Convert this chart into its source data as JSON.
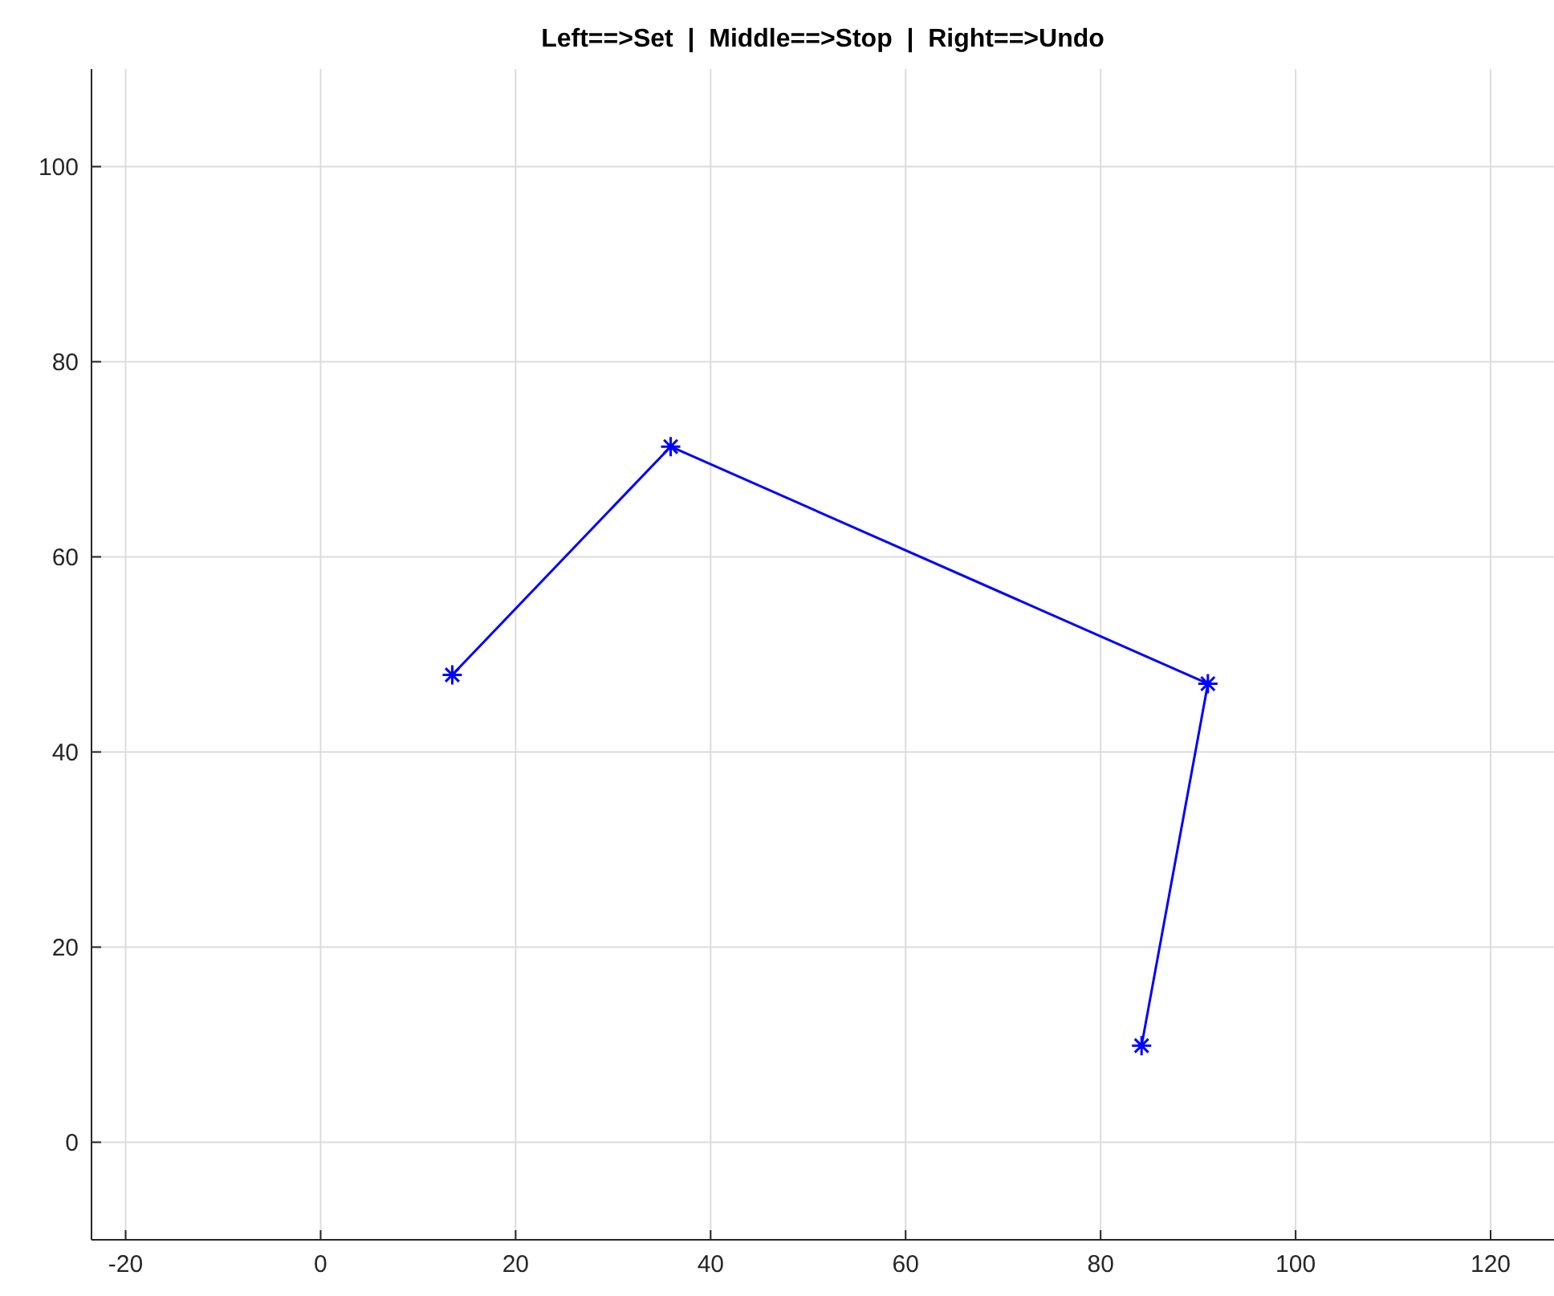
{
  "chart_data": {
    "type": "line",
    "title": "Left==>Set  |  Middle==>Stop  |  Right==>Undo",
    "x": [
      13.5,
      35.9,
      91.0,
      84.2
    ],
    "series": [
      {
        "color": "#0000ff",
        "values": [
          47.9,
          71.3,
          47.0,
          9.9
        ]
      }
    ],
    "xlim": [
      -23.5,
      126.5
    ],
    "ylim": [
      -10,
      110
    ],
    "xticks": [
      -20,
      0,
      20,
      40,
      60,
      80,
      100,
      120
    ],
    "yticks": [
      0,
      20,
      40,
      60,
      80,
      100
    ],
    "grid": true,
    "marker": "cross",
    "line_style": "solid"
  }
}
